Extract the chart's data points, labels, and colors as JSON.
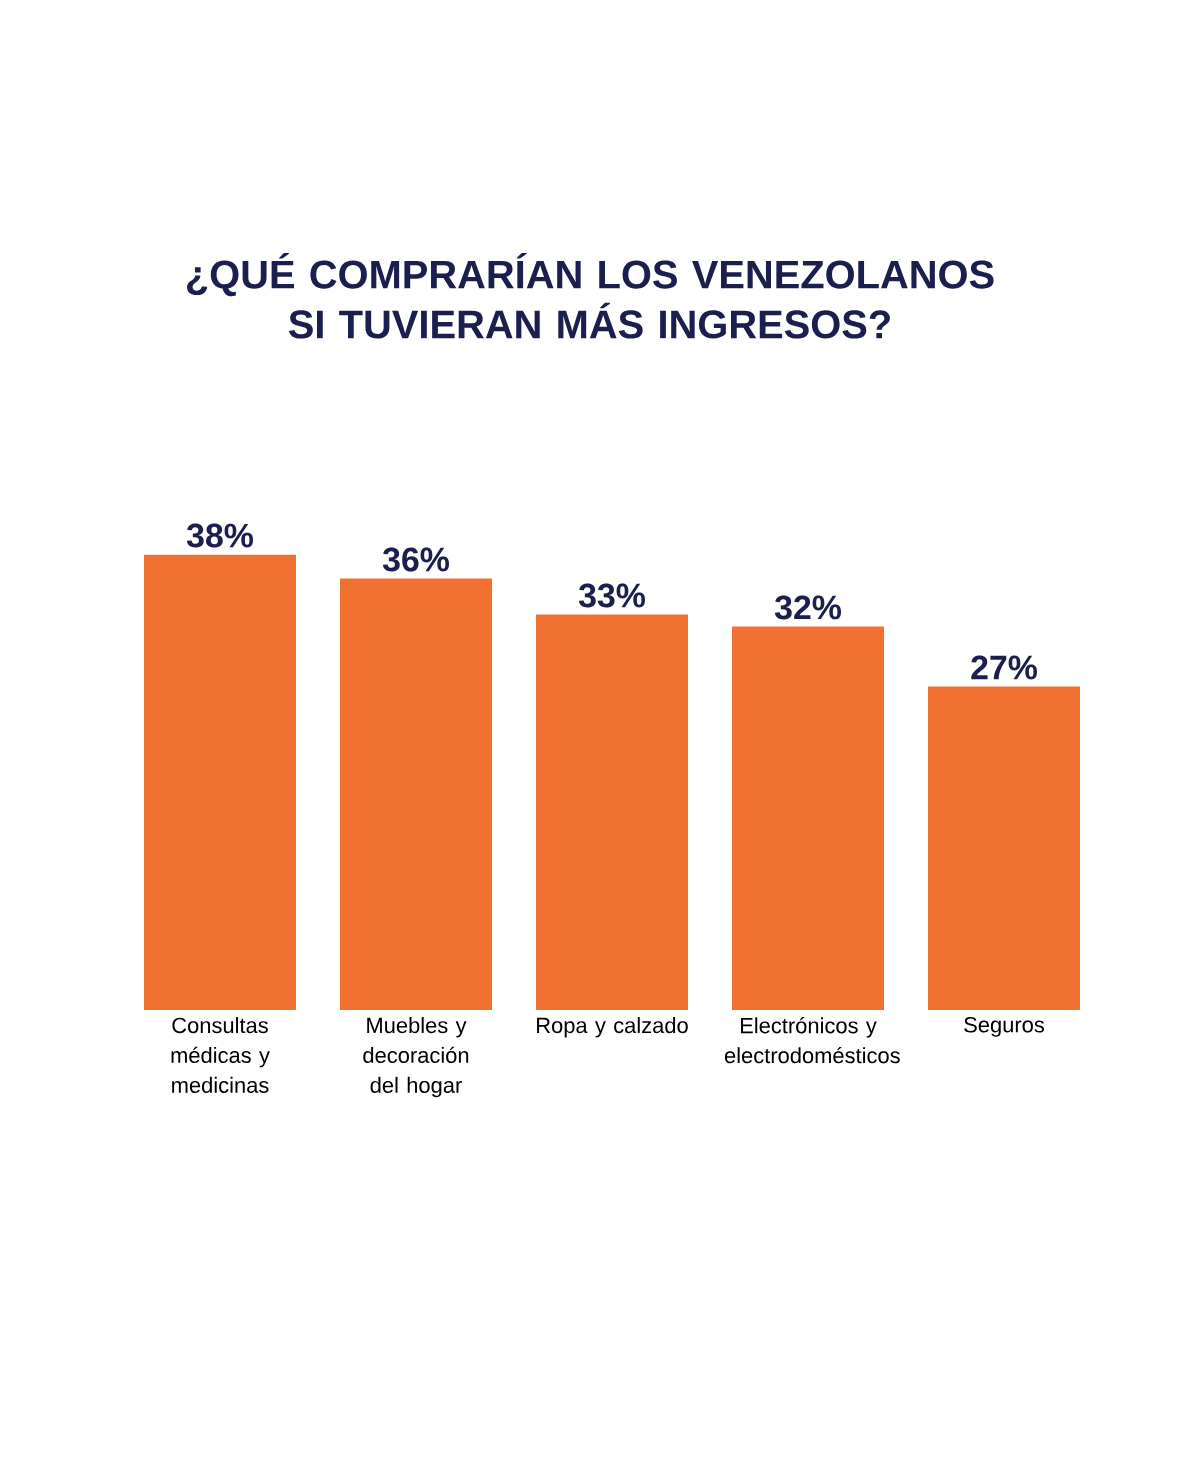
{
  "chart_data": {
    "type": "bar",
    "title": "¿QUÉ COMPRARÍAN LOS VENEZOLANOS SI TUVIERAN MÁS INGRESOS?",
    "categories": [
      "Consultas médicas y medicinas",
      "Muebles y decoración del hogar",
      "Ropa y calzado",
      "Electrónicos y electrodomésticos",
      "Seguros"
    ],
    "values": [
      38,
      36,
      33,
      32,
      27
    ],
    "value_labels": [
      "38%",
      "36%",
      "33%",
      "32%",
      "27%"
    ],
    "color": "#f07030"
  }
}
